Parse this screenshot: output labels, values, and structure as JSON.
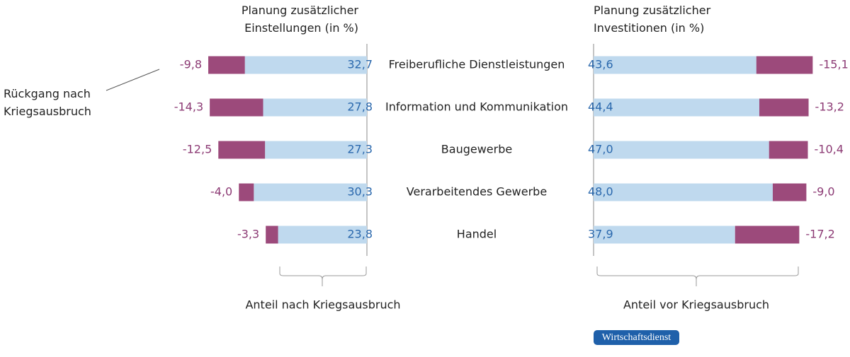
{
  "chart_data": {
    "type": "bar",
    "categories": [
      "Freiberufliche Dienstleistungen",
      "Information und Kommunikation",
      "Baugewerbe",
      "Verarbeitendes Gewerbe",
      "Handel"
    ],
    "panels": [
      {
        "title": "Planung zusätzlicher Einstellungen (in %)",
        "direction": "left",
        "series": [
          {
            "name": "Anteil nach Kriegsausbruch",
            "color": "#bfd9ee",
            "label_color": "#2a68ad",
            "values": [
              32.7,
              27.8,
              27.3,
              30.3,
              23.8
            ],
            "value_labels": [
              "32,7",
              "27,8",
              "27,3",
              "30,3",
              "23,8"
            ]
          },
          {
            "name": "Rückgang nach Kriegsausbruch",
            "color": "#9c4a7b",
            "label_color": "#8c3a74",
            "values": [
              -9.8,
              -14.3,
              -12.5,
              -4.0,
              -3.3
            ],
            "value_labels": [
              "-9,8",
              "-14,3",
              "-12,5",
              "-4,0",
              "-3,3"
            ]
          }
        ]
      },
      {
        "title": "Planung zusätzlicher Investitionen (in %)",
        "direction": "right",
        "series": [
          {
            "name": "Anteil vor Kriegsausbruch",
            "color": "#bfd9ee",
            "label_color": "#2a68ad",
            "values": [
              43.6,
              44.4,
              47.0,
              48.0,
              37.9
            ],
            "value_labels": [
              "43,6",
              "44,4",
              "47,0",
              "48,0",
              "37,9"
            ]
          },
          {
            "color": "#9c4a7b",
            "label_color": "#8c3a74",
            "values": [
              -15.1,
              -13.2,
              -10.4,
              -9.0,
              -17.2
            ],
            "value_labels": [
              "-15,1",
              "-13,2",
              "-10,4",
              "-9,0",
              "-17,2"
            ]
          }
        ]
      }
    ],
    "source": "Wirtschaftsdienst"
  }
}
